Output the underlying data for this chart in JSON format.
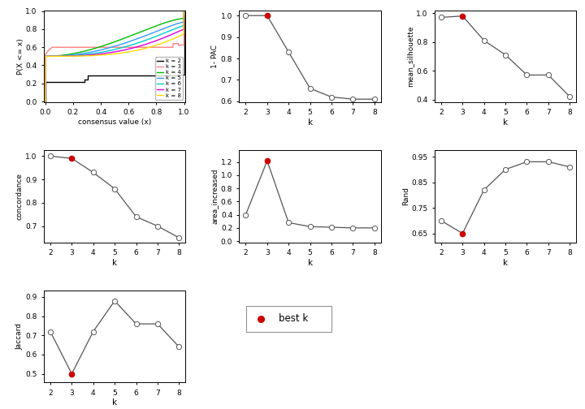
{
  "k_values": [
    2,
    3,
    4,
    5,
    6,
    7,
    8
  ],
  "pac_1minus": [
    1.0,
    1.0,
    0.83,
    0.66,
    0.62,
    0.61,
    0.61
  ],
  "pac_best_k": 3,
  "mean_silhouette": [
    0.97,
    0.98,
    0.81,
    0.71,
    0.57,
    0.57,
    0.42
  ],
  "sil_best_k": 3,
  "concordance": [
    1.0,
    0.99,
    0.93,
    0.86,
    0.74,
    0.7,
    0.65
  ],
  "conc_best_k": 3,
  "area_increased": [
    0.4,
    1.22,
    0.28,
    0.22,
    0.21,
    0.2,
    0.2
  ],
  "area_best_k": 3,
  "rand": [
    0.7,
    0.65,
    0.82,
    0.9,
    0.93,
    0.93,
    0.91
  ],
  "rand_best_k": 3,
  "jaccard": [
    0.72,
    0.5,
    0.72,
    0.88,
    0.76,
    0.76,
    0.64
  ],
  "jacc_best_k": 3,
  "ecdf_colors": {
    "k2": "#000000",
    "k3": "#ff8080",
    "k4": "#00bb00",
    "k5": "#3399ff",
    "k6": "#00cccc",
    "k7": "#dd00dd",
    "k8": "#ffdd00"
  },
  "legend_labels": [
    "k = 2",
    "k = 3",
    "k = 4",
    "k = 5",
    "k = 6",
    "k = 7",
    "k = 8"
  ],
  "best_k_color": "#cc0000",
  "open_circle_color": "white",
  "line_color": "#555555",
  "background_color": "#ffffff"
}
